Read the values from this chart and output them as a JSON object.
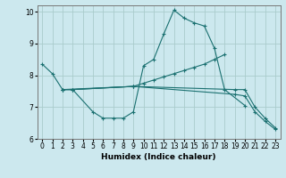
{
  "xlabel": "Humidex (Indice chaleur)",
  "bg_color": "#cce8ee",
  "grid_color": "#aacccc",
  "line_color": "#1a7070",
  "xlim": [
    -0.5,
    23.5
  ],
  "ylim": [
    6,
    10.2
  ],
  "yticks": [
    6,
    7,
    8,
    9,
    10
  ],
  "xticks": [
    0,
    1,
    2,
    3,
    4,
    5,
    6,
    7,
    8,
    9,
    10,
    11,
    12,
    13,
    14,
    15,
    16,
    17,
    18,
    19,
    20,
    21,
    22,
    23
  ],
  "series": [
    {
      "x": [
        0,
        1,
        2,
        3,
        5,
        6,
        7,
        8,
        9,
        10,
        11,
        12,
        13,
        14,
        15,
        16,
        17,
        18,
        20
      ],
      "y": [
        8.35,
        8.05,
        7.55,
        7.55,
        6.85,
        6.65,
        6.65,
        6.65,
        6.85,
        8.3,
        8.5,
        9.3,
        10.05,
        9.8,
        9.65,
        9.55,
        8.85,
        7.55,
        7.05
      ]
    },
    {
      "x": [
        2,
        3,
        9,
        10,
        11,
        12,
        13,
        14,
        15,
        16,
        17,
        18
      ],
      "y": [
        7.55,
        7.55,
        7.65,
        7.75,
        7.85,
        7.95,
        8.05,
        8.15,
        8.25,
        8.35,
        8.5,
        8.65
      ]
    },
    {
      "x": [
        2,
        3,
        9,
        19,
        20,
        21,
        22,
        23
      ],
      "y": [
        7.55,
        7.55,
        7.65,
        7.55,
        7.55,
        7.0,
        6.65,
        6.35
      ]
    },
    {
      "x": [
        2,
        9,
        19,
        20,
        21,
        22,
        23
      ],
      "y": [
        7.55,
        7.65,
        7.4,
        7.35,
        6.85,
        6.55,
        6.3
      ]
    }
  ]
}
